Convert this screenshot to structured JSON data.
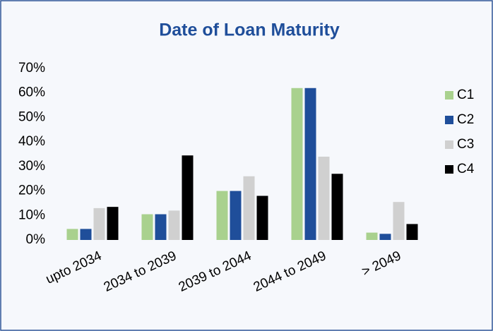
{
  "chart_data": {
    "type": "bar",
    "title": "Date of Loan Maturity",
    "categories": [
      "upto 2034",
      "2034 to 2039",
      "2039 to 2044",
      "2044 to 2049",
      "> 2049"
    ],
    "series": [
      {
        "name": "C1",
        "color": "#a9d18e",
        "values": [
          4.5,
          10.5,
          20,
          62,
          3
        ]
      },
      {
        "name": "C2",
        "color": "#1f4e9a",
        "values": [
          4.5,
          10.5,
          20,
          62,
          2.5
        ]
      },
      {
        "name": "C3",
        "color": "#d0d0d0",
        "values": [
          13,
          12,
          26,
          34,
          15.5
        ]
      },
      {
        "name": "C4",
        "color": "#000000",
        "values": [
          13.5,
          34.5,
          18,
          27,
          6.5
        ]
      }
    ],
    "ylim": [
      0,
      70
    ],
    "yticks": [
      {
        "value": 0,
        "label": "0%"
      },
      {
        "value": 10,
        "label": "10%"
      },
      {
        "value": 20,
        "label": "20%"
      },
      {
        "value": 30,
        "label": "30%"
      },
      {
        "value": 40,
        "label": "40%"
      },
      {
        "value": 50,
        "label": "50%"
      },
      {
        "value": 60,
        "label": "60%"
      },
      {
        "value": 70,
        "label": "70%"
      }
    ],
    "grid": false,
    "legend": "right"
  }
}
